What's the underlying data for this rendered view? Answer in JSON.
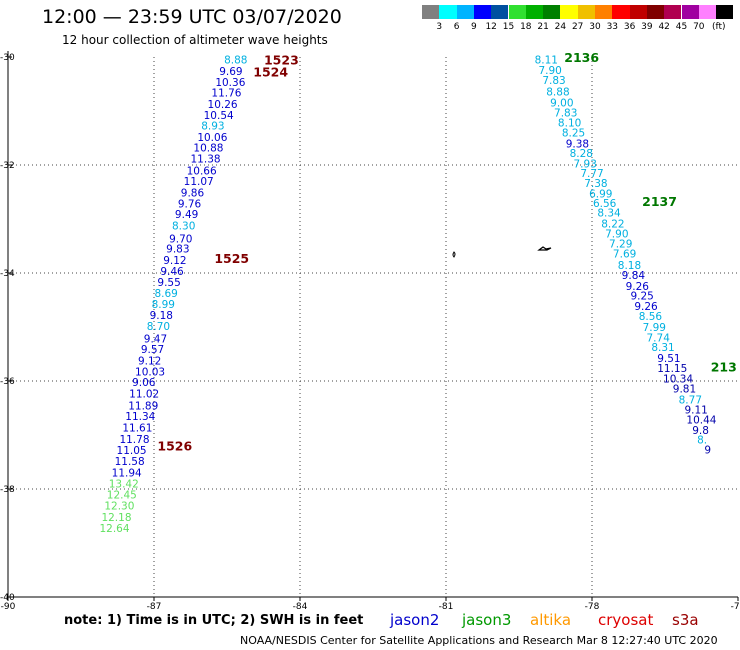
{
  "title": "12:00 — 23:59 UTC 03/07/2020",
  "subtitle": "12 hour collection of altimeter wave heights",
  "color_scale": {
    "colors": [
      "#808080",
      "#00ffff",
      "#00b4ff",
      "#0000ff",
      "#0050a0",
      "#30e030",
      "#00b000",
      "#008000",
      "#ffff00",
      "#f0c000",
      "#ff8000",
      "#ff0000",
      "#c00000",
      "#800000",
      "#b00050",
      "#a000a0",
      "#ff80ff",
      "#000000"
    ],
    "labels": [
      "3",
      "6",
      "9",
      "12",
      "15",
      "18",
      "21",
      "24",
      "27",
      "30",
      "33",
      "36",
      "39",
      "42",
      "45",
      "70"
    ],
    "unit_label": "(ft)"
  },
  "footer": {
    "note": "note: 1) Time is in UTC; 2) SWH is in feet",
    "credit": "NOAA/NESDIS Center for Satellite Applications and Research   Mar  8 12:27:40 UTC 2020"
  },
  "satellites": [
    {
      "name": "jason2",
      "color": "#0000cc"
    },
    {
      "name": "jason3",
      "color": "#009900"
    },
    {
      "name": "altika",
      "color": "#ff9900"
    },
    {
      "name": "cryosat",
      "color": "#dd0000"
    },
    {
      "name": "s3a",
      "color": "#990000"
    }
  ],
  "chart_data": {
    "type": "scatter",
    "xlim": [
      -90,
      -75
    ],
    "ylim": [
      -40,
      -30
    ],
    "x_ticks": [
      "-90",
      "-87",
      "-84",
      "-81",
      "-78",
      "-75"
    ],
    "y_ticks": [
      "-30",
      "-32",
      "-34",
      "-36",
      "-38",
      "-40"
    ],
    "grid": true,
    "level_colors": {
      "c6": "#00b0e0",
      "c9": "#0000cc",
      "c12": "#0000aa",
      "c15": "#60e060"
    },
    "pass_labels": [
      {
        "text": "1523",
        "lon": -84.74,
        "lat": -30.05,
        "color": "#800000"
      },
      {
        "text": "1524",
        "lon": -84.96,
        "lat": -30.27,
        "color": "#800000"
      },
      {
        "text": "1525",
        "lon": -85.76,
        "lat": -33.72,
        "color": "#800000"
      },
      {
        "text": "1526",
        "lon": -86.93,
        "lat": -37.19,
        "color": "#800000"
      },
      {
        "text": "2136",
        "lon": -78.57,
        "lat": -30.0,
        "color": "#007700"
      },
      {
        "text": "2137",
        "lon": -76.97,
        "lat": -32.67,
        "color": "#007700"
      },
      {
        "text": "213",
        "lon": -75.56,
        "lat": -35.73,
        "color": "#007700"
      }
    ],
    "series": [
      {
        "name": "pass 1523-1526",
        "points": [
          {
            "lon": -85.56,
            "lat": -30.05,
            "text": "8.88",
            "lvl": "c6"
          },
          {
            "lon": -85.66,
            "lat": -30.26,
            "text": "9.69",
            "lvl": "c9"
          },
          {
            "lon": -85.74,
            "lat": -30.46,
            "text": "10.36",
            "lvl": "c9"
          },
          {
            "lon": -85.82,
            "lat": -30.66,
            "text": "11.76",
            "lvl": "c9"
          },
          {
            "lon": -85.9,
            "lat": -30.87,
            "text": "10.26",
            "lvl": "c9"
          },
          {
            "lon": -85.98,
            "lat": -31.07,
            "text": "10.54",
            "lvl": "c9"
          },
          {
            "lon": -86.03,
            "lat": -31.27,
            "text": "8.93",
            "lvl": "c6"
          },
          {
            "lon": -86.11,
            "lat": -31.48,
            "text": "10.06",
            "lvl": "c9"
          },
          {
            "lon": -86.19,
            "lat": -31.68,
            "text": "10.88",
            "lvl": "c9"
          },
          {
            "lon": -86.25,
            "lat": -31.88,
            "text": "11.38",
            "lvl": "c9"
          },
          {
            "lon": -86.33,
            "lat": -32.1,
            "text": "10.66",
            "lvl": "c9"
          },
          {
            "lon": -86.39,
            "lat": -32.3,
            "text": "11.07",
            "lvl": "c9"
          },
          {
            "lon": -86.45,
            "lat": -32.51,
            "text": "9.86",
            "lvl": "c9"
          },
          {
            "lon": -86.51,
            "lat": -32.71,
            "text": "9.76",
            "lvl": "c9"
          },
          {
            "lon": -86.57,
            "lat": -32.91,
            "text": "9.49",
            "lvl": "c9"
          },
          {
            "lon": -86.63,
            "lat": -33.12,
            "text": "8.30",
            "lvl": "c6"
          },
          {
            "lon": -86.69,
            "lat": -33.36,
            "text": "9.70",
            "lvl": "c9"
          },
          {
            "lon": -86.75,
            "lat": -33.55,
            "text": "9.83",
            "lvl": "c9"
          },
          {
            "lon": -86.81,
            "lat": -33.76,
            "text": "9.12",
            "lvl": "c9"
          },
          {
            "lon": -86.87,
            "lat": -33.96,
            "text": "9.46",
            "lvl": "c9"
          },
          {
            "lon": -86.93,
            "lat": -34.17,
            "text": "9.55",
            "lvl": "c9"
          },
          {
            "lon": -86.99,
            "lat": -34.37,
            "text": "8.69",
            "lvl": "c6"
          },
          {
            "lon": -87.05,
            "lat": -34.57,
            "text": "8.99",
            "lvl": "c6"
          },
          {
            "lon": -87.09,
            "lat": -34.78,
            "text": "9.18",
            "lvl": "c9"
          },
          {
            "lon": -87.15,
            "lat": -34.98,
            "text": "8.70",
            "lvl": "c6"
          },
          {
            "lon": -87.21,
            "lat": -35.21,
            "text": "9.47",
            "lvl": "c9"
          },
          {
            "lon": -87.27,
            "lat": -35.41,
            "text": "9.57",
            "lvl": "c9"
          },
          {
            "lon": -87.33,
            "lat": -35.62,
            "text": "9.12",
            "lvl": "c9"
          },
          {
            "lon": -87.39,
            "lat": -35.82,
            "text": "10.03",
            "lvl": "c9"
          },
          {
            "lon": -87.45,
            "lat": -36.02,
            "text": "9.06",
            "lvl": "c9"
          },
          {
            "lon": -87.51,
            "lat": -36.23,
            "text": "11.02",
            "lvl": "c9"
          },
          {
            "lon": -87.53,
            "lat": -36.45,
            "text": "11.89",
            "lvl": "c9"
          },
          {
            "lon": -87.59,
            "lat": -36.65,
            "text": "11.34",
            "lvl": "c9"
          },
          {
            "lon": -87.65,
            "lat": -36.86,
            "text": "11.61",
            "lvl": "c9"
          },
          {
            "lon": -87.71,
            "lat": -37.07,
            "text": "11.78",
            "lvl": "c9"
          },
          {
            "lon": -87.77,
            "lat": -37.28,
            "text": "11.05",
            "lvl": "c9"
          },
          {
            "lon": -87.81,
            "lat": -37.48,
            "text": "11.58",
            "lvl": "c9"
          },
          {
            "lon": -87.87,
            "lat": -37.69,
            "text": "11.94",
            "lvl": "c9"
          },
          {
            "lon": -87.93,
            "lat": -37.9,
            "text": "13.42",
            "lvl": "c15"
          },
          {
            "lon": -87.97,
            "lat": -38.1,
            "text": "12.45",
            "lvl": "c15"
          },
          {
            "lon": -88.02,
            "lat": -38.31,
            "text": "12.30",
            "lvl": "c15"
          },
          {
            "lon": -88.08,
            "lat": -38.52,
            "text": "12.18",
            "lvl": "c15"
          },
          {
            "lon": -88.12,
            "lat": -38.72,
            "text": "12.64",
            "lvl": "c15"
          }
        ]
      },
      {
        "name": "pass 2136-2137",
        "points": [
          {
            "lon": -79.18,
            "lat": -30.05,
            "text": "8.11",
            "lvl": "c6"
          },
          {
            "lon": -79.1,
            "lat": -30.24,
            "text": "7.90",
            "lvl": "c6"
          },
          {
            "lon": -79.02,
            "lat": -30.43,
            "text": "7.83",
            "lvl": "c6"
          },
          {
            "lon": -78.94,
            "lat": -30.64,
            "text": "8.88",
            "lvl": "c6"
          },
          {
            "lon": -78.86,
            "lat": -30.84,
            "text": "9.00",
            "lvl": "c6"
          },
          {
            "lon": -78.78,
            "lat": -31.03,
            "text": "7.83",
            "lvl": "c6"
          },
          {
            "lon": -78.7,
            "lat": -31.21,
            "text": "8.10",
            "lvl": "c6"
          },
          {
            "lon": -78.62,
            "lat": -31.4,
            "text": "8.25",
            "lvl": "c6"
          },
          {
            "lon": -78.54,
            "lat": -31.6,
            "text": "9.38",
            "lvl": "c9"
          },
          {
            "lon": -78.46,
            "lat": -31.78,
            "text": "8.28",
            "lvl": "c6"
          },
          {
            "lon": -78.38,
            "lat": -31.97,
            "text": "7.93",
            "lvl": "c6"
          },
          {
            "lon": -78.24,
            "lat": -32.15,
            "text": "7.77",
            "lvl": "c6"
          },
          {
            "lon": -78.16,
            "lat": -32.33,
            "text": "7.38",
            "lvl": "c6"
          },
          {
            "lon": -78.06,
            "lat": -32.53,
            "text": "6.99",
            "lvl": "c6"
          },
          {
            "lon": -77.98,
            "lat": -32.7,
            "text": "6.56",
            "lvl": "c6"
          },
          {
            "lon": -77.89,
            "lat": -32.88,
            "text": "8.34",
            "lvl": "c6"
          },
          {
            "lon": -77.81,
            "lat": -33.08,
            "text": "8.22",
            "lvl": "c6"
          },
          {
            "lon": -77.73,
            "lat": -33.27,
            "text": "7.90",
            "lvl": "c6"
          },
          {
            "lon": -77.65,
            "lat": -33.45,
            "text": "7.29",
            "lvl": "c6"
          },
          {
            "lon": -77.57,
            "lat": -33.64,
            "text": "7.69",
            "lvl": "c6"
          },
          {
            "lon": -77.47,
            "lat": -33.85,
            "text": "8.18",
            "lvl": "c6"
          },
          {
            "lon": -77.39,
            "lat": -34.04,
            "text": "9.84",
            "lvl": "c9"
          },
          {
            "lon": -77.31,
            "lat": -34.24,
            "text": "9.26",
            "lvl": "c9"
          },
          {
            "lon": -77.21,
            "lat": -34.42,
            "text": "9.25",
            "lvl": "c9"
          },
          {
            "lon": -77.13,
            "lat": -34.61,
            "text": "9.26",
            "lvl": "c9"
          },
          {
            "lon": -77.04,
            "lat": -34.8,
            "text": "8.56",
            "lvl": "c6"
          },
          {
            "lon": -76.96,
            "lat": -35.0,
            "text": "7.99",
            "lvl": "c6"
          },
          {
            "lon": -76.88,
            "lat": -35.19,
            "text": "7.74",
            "lvl": "c6"
          },
          {
            "lon": -76.78,
            "lat": -35.37,
            "text": "8.31",
            "lvl": "c6"
          },
          {
            "lon": -76.66,
            "lat": -35.57,
            "text": "9.51",
            "lvl": "c9"
          },
          {
            "lon": -76.66,
            "lat": -35.76,
            "text": "11.15",
            "lvl": "c12"
          },
          {
            "lon": -76.54,
            "lat": -35.95,
            "text": "10.34",
            "lvl": "c12"
          },
          {
            "lon": -76.34,
            "lat": -36.14,
            "text": "9.81",
            "lvl": "c12"
          },
          {
            "lon": -76.22,
            "lat": -36.34,
            "text": "8.77",
            "lvl": "c6"
          },
          {
            "lon": -76.1,
            "lat": -36.53,
            "text": "9.11",
            "lvl": "c12"
          },
          {
            "lon": -76.06,
            "lat": -36.71,
            "text": "10.44",
            "lvl": "c12"
          },
          {
            "lon": -75.94,
            "lat": -36.91,
            "text": "9.8",
            "lvl": "c12"
          },
          {
            "lon": -75.84,
            "lat": -37.08,
            "text": "8.",
            "lvl": "c6"
          },
          {
            "lon": -75.69,
            "lat": -37.27,
            "text": "9",
            "lvl": "c12"
          }
        ]
      }
    ]
  }
}
